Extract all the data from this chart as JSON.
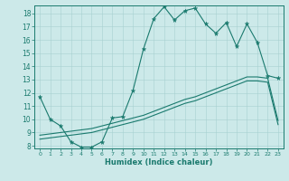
{
  "xlabel": "Humidex (Indice chaleur)",
  "xlim": [
    -0.5,
    23.5
  ],
  "ylim": [
    7.8,
    18.6
  ],
  "yticks": [
    8,
    9,
    10,
    11,
    12,
    13,
    14,
    15,
    16,
    17,
    18
  ],
  "xticks": [
    0,
    1,
    2,
    3,
    4,
    5,
    6,
    7,
    8,
    9,
    10,
    11,
    12,
    13,
    14,
    15,
    16,
    17,
    18,
    19,
    20,
    21,
    22,
    23
  ],
  "bg_color": "#cce9e9",
  "line_color": "#1a7a6e",
  "line1_x": [
    0,
    1,
    2,
    3,
    4,
    5,
    6,
    7,
    8,
    9,
    10,
    11,
    12,
    13,
    14,
    15,
    16,
    17,
    18,
    19,
    20,
    21,
    22,
    23
  ],
  "line1_y": [
    11.7,
    10.0,
    9.5,
    8.3,
    7.9,
    7.9,
    8.3,
    10.1,
    10.2,
    12.2,
    15.3,
    17.6,
    18.5,
    17.5,
    18.2,
    18.4,
    17.2,
    16.5,
    17.3,
    15.5,
    17.2,
    15.8,
    13.3,
    13.1
  ],
  "line2_x": [
    0,
    1,
    2,
    3,
    4,
    5,
    6,
    7,
    8,
    9,
    10,
    11,
    12,
    13,
    14,
    15,
    16,
    17,
    18,
    19,
    20,
    21,
    22,
    23
  ],
  "line2_y": [
    8.8,
    8.9,
    9.0,
    9.1,
    9.2,
    9.3,
    9.5,
    9.7,
    9.9,
    10.1,
    10.3,
    10.6,
    10.9,
    11.2,
    11.5,
    11.7,
    12.0,
    12.3,
    12.6,
    12.9,
    13.2,
    13.2,
    13.1,
    9.9
  ],
  "line3_x": [
    0,
    1,
    2,
    3,
    4,
    5,
    6,
    7,
    8,
    9,
    10,
    11,
    12,
    13,
    14,
    15,
    16,
    17,
    18,
    19,
    20,
    21,
    22,
    23
  ],
  "line3_y": [
    8.5,
    8.6,
    8.7,
    8.8,
    8.9,
    9.0,
    9.2,
    9.4,
    9.6,
    9.8,
    10.0,
    10.3,
    10.6,
    10.9,
    11.2,
    11.4,
    11.7,
    12.0,
    12.3,
    12.6,
    12.9,
    12.9,
    12.8,
    9.6
  ]
}
